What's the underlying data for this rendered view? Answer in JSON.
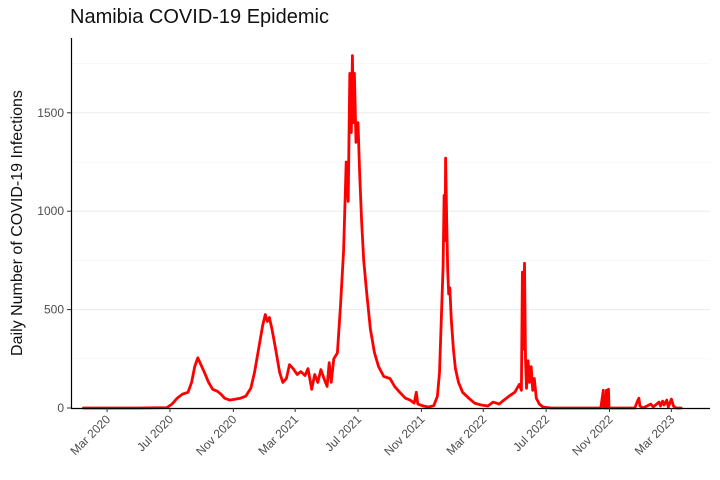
{
  "chart_data": {
    "type": "line",
    "title": "Namibia COVID-19 Epidemic",
    "xlabel": "",
    "ylabel": "Daily Number of COVID-19 Infections",
    "xlim": [
      "2019-12-22",
      "2023-05-15"
    ],
    "ylim": [
      0,
      1880
    ],
    "x_ticks": [
      "2020-03-01",
      "2020-07-01",
      "2020-11-01",
      "2021-03-01",
      "2021-07-01",
      "2021-11-01",
      "2022-03-01",
      "2022-07-01",
      "2022-11-01",
      "2023-03-01"
    ],
    "x_tick_labels": [
      "Mar 2020",
      "Jul 2020",
      "Nov 2020",
      "Mar 2021",
      "Jul 2021",
      "Nov 2021",
      "Mar 2022",
      "Jul 2022",
      "Nov 2022",
      "Mar 2023"
    ],
    "y_ticks": [
      0,
      500,
      1000,
      1500
    ],
    "y_tick_labels": [
      "0",
      "500",
      "1000",
      "1500"
    ],
    "grid": "horizontal",
    "legend": "none",
    "line_color": "#ff0000",
    "series": [
      {
        "values": [
          [
            "2020-01-15",
            0
          ],
          [
            "2020-03-01",
            0
          ],
          [
            "2020-05-01",
            0
          ],
          [
            "2020-06-25",
            2
          ],
          [
            "2020-07-05",
            20
          ],
          [
            "2020-07-15",
            50
          ],
          [
            "2020-07-25",
            70
          ],
          [
            "2020-08-05",
            80
          ],
          [
            "2020-08-12",
            130
          ],
          [
            "2020-08-18",
            210
          ],
          [
            "2020-08-24",
            255
          ],
          [
            "2020-08-30",
            220
          ],
          [
            "2020-09-06",
            180
          ],
          [
            "2020-09-14",
            130
          ],
          [
            "2020-09-22",
            95
          ],
          [
            "2020-10-01",
            85
          ],
          [
            "2020-10-08",
            70
          ],
          [
            "2020-10-15",
            50
          ],
          [
            "2020-10-25",
            40
          ],
          [
            "2020-11-05",
            45
          ],
          [
            "2020-11-15",
            50
          ],
          [
            "2020-11-25",
            60
          ],
          [
            "2020-12-05",
            100
          ],
          [
            "2020-12-12",
            180
          ],
          [
            "2020-12-20",
            300
          ],
          [
            "2020-12-28",
            420
          ],
          [
            "2021-01-02",
            475
          ],
          [
            "2021-01-06",
            440
          ],
          [
            "2021-01-10",
            460
          ],
          [
            "2021-01-15",
            400
          ],
          [
            "2021-01-22",
            300
          ],
          [
            "2021-01-30",
            180
          ],
          [
            "2021-02-05",
            130
          ],
          [
            "2021-02-12",
            150
          ],
          [
            "2021-02-18",
            220
          ],
          [
            "2021-02-25",
            200
          ],
          [
            "2021-03-05",
            170
          ],
          [
            "2021-03-12",
            185
          ],
          [
            "2021-03-20",
            165
          ],
          [
            "2021-03-26",
            200
          ],
          [
            "2021-04-02",
            95
          ],
          [
            "2021-04-08",
            170
          ],
          [
            "2021-04-14",
            130
          ],
          [
            "2021-04-20",
            195
          ],
          [
            "2021-04-26",
            150
          ],
          [
            "2021-05-02",
            110
          ],
          [
            "2021-05-06",
            230
          ],
          [
            "2021-05-10",
            130
          ],
          [
            "2021-05-15",
            250
          ],
          [
            "2021-05-22",
            280
          ],
          [
            "2021-05-28",
            520
          ],
          [
            "2021-06-03",
            800
          ],
          [
            "2021-06-08",
            1250
          ],
          [
            "2021-06-12",
            1050
          ],
          [
            "2021-06-15",
            1700
          ],
          [
            "2021-06-18",
            1400
          ],
          [
            "2021-06-20",
            1790
          ],
          [
            "2021-06-22",
            1450
          ],
          [
            "2021-06-24",
            1700
          ],
          [
            "2021-06-27",
            1350
          ],
          [
            "2021-07-01",
            1450
          ],
          [
            "2021-07-04",
            1200
          ],
          [
            "2021-07-08",
            950
          ],
          [
            "2021-07-12",
            750
          ],
          [
            "2021-07-18",
            580
          ],
          [
            "2021-07-25",
            400
          ],
          [
            "2021-08-02",
            280
          ],
          [
            "2021-08-10",
            210
          ],
          [
            "2021-08-20",
            160
          ],
          [
            "2021-09-01",
            150
          ],
          [
            "2021-09-10",
            110
          ],
          [
            "2021-09-20",
            80
          ],
          [
            "2021-10-01",
            50
          ],
          [
            "2021-10-10",
            40
          ],
          [
            "2021-10-18",
            25
          ],
          [
            "2021-10-22",
            80
          ],
          [
            "2021-10-25",
            20
          ],
          [
            "2021-11-05",
            10
          ],
          [
            "2021-11-15",
            5
          ],
          [
            "2021-11-25",
            12
          ],
          [
            "2021-12-02",
            60
          ],
          [
            "2021-12-06",
            180
          ],
          [
            "2021-12-10",
            480
          ],
          [
            "2021-12-13",
            720
          ],
          [
            "2021-12-15",
            1080
          ],
          [
            "2021-12-17",
            850
          ],
          [
            "2021-12-18",
            1270
          ],
          [
            "2021-12-20",
            950
          ],
          [
            "2021-12-22",
            700
          ],
          [
            "2021-12-24",
            580
          ],
          [
            "2021-12-26",
            610
          ],
          [
            "2021-12-29",
            450
          ],
          [
            "2022-01-02",
            300
          ],
          [
            "2022-01-06",
            200
          ],
          [
            "2022-01-12",
            130
          ],
          [
            "2022-01-20",
            80
          ],
          [
            "2022-02-01",
            50
          ],
          [
            "2022-02-12",
            25
          ],
          [
            "2022-02-25",
            15
          ],
          [
            "2022-03-10",
            10
          ],
          [
            "2022-03-20",
            30
          ],
          [
            "2022-04-01",
            20
          ],
          [
            "2022-04-10",
            40
          ],
          [
            "2022-04-20",
            60
          ],
          [
            "2022-05-01",
            80
          ],
          [
            "2022-05-10",
            120
          ],
          [
            "2022-05-14",
            90
          ],
          [
            "2022-05-16",
            690
          ],
          [
            "2022-05-18",
            300
          ],
          [
            "2022-05-20",
            735
          ],
          [
            "2022-05-22",
            250
          ],
          [
            "2022-05-24",
            100
          ],
          [
            "2022-05-27",
            240
          ],
          [
            "2022-05-30",
            130
          ],
          [
            "2022-06-02",
            210
          ],
          [
            "2022-06-05",
            90
          ],
          [
            "2022-06-08",
            150
          ],
          [
            "2022-06-12",
            50
          ],
          [
            "2022-06-18",
            20
          ],
          [
            "2022-06-25",
            5
          ],
          [
            "2022-07-10",
            0
          ],
          [
            "2022-08-01",
            0
          ],
          [
            "2022-09-01",
            0
          ],
          [
            "2022-10-15",
            0
          ],
          [
            "2022-10-20",
            90
          ],
          [
            "2022-10-21",
            0
          ],
          [
            "2022-10-25",
            0
          ],
          [
            "2022-10-26",
            90
          ],
          [
            "2022-10-27",
            0
          ],
          [
            "2022-10-29",
            0
          ],
          [
            "2022-10-30",
            95
          ],
          [
            "2022-10-31",
            0
          ],
          [
            "2022-11-15",
            0
          ],
          [
            "2022-12-01",
            0
          ],
          [
            "2022-12-20",
            0
          ],
          [
            "2022-12-26",
            40
          ],
          [
            "2022-12-28",
            50
          ],
          [
            "2022-12-30",
            10
          ],
          [
            "2023-01-05",
            0
          ],
          [
            "2023-01-20",
            20
          ],
          [
            "2023-01-25",
            5
          ],
          [
            "2023-02-05",
            30
          ],
          [
            "2023-02-08",
            10
          ],
          [
            "2023-02-12",
            35
          ],
          [
            "2023-02-15",
            15
          ],
          [
            "2023-02-20",
            40
          ],
          [
            "2023-02-23",
            5
          ],
          [
            "2023-03-01",
            45
          ],
          [
            "2023-03-05",
            10
          ],
          [
            "2023-03-10",
            0
          ],
          [
            "2023-03-20",
            0
          ]
        ]
      }
    ]
  }
}
